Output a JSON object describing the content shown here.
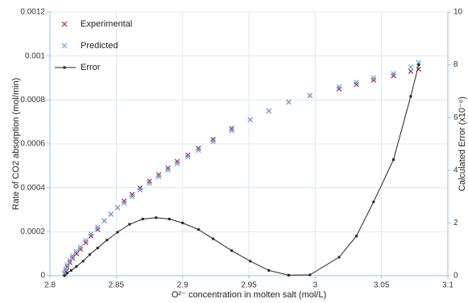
{
  "chart_data": {
    "type": "scatter",
    "x_label": "O²⁻ concentration in molten salt (mol/L)",
    "y_label": "Rate of CO2 absorption (mol/min)",
    "y2_label": "Calculated Error (x10⁻⁶)",
    "xlim": [
      2.8,
      3.1
    ],
    "xticks": [
      2.8,
      2.85,
      2.9,
      2.95,
      3,
      3.05,
      3.1
    ],
    "ylim": [
      0,
      0.0012
    ],
    "yticks": [
      0,
      0.0002,
      0.0004,
      0.0006,
      0.0008,
      0.001,
      0.0012
    ],
    "y2lim": [
      0,
      10
    ],
    "y2ticks": [
      0,
      2,
      4,
      6,
      8,
      10
    ],
    "grid": true,
    "legend": "upper left",
    "series": [
      {
        "name": "Experimental",
        "color": "#9b2d5a",
        "marker": "x",
        "x": [
          2.811,
          2.812,
          2.813,
          2.815,
          2.817,
          2.82,
          2.823,
          2.827,
          2.831,
          2.836,
          2.841,
          2.846,
          2.851,
          2.856,
          2.862,
          2.868,
          2.875,
          2.882,
          2.889,
          2.896,
          2.904,
          2.912,
          2.923,
          2.937,
          2.951,
          2.965,
          2.98,
          2.996,
          3.018,
          3.031,
          3.044,
          3.059,
          3.072,
          3.078
        ],
        "values": [
          1e-05,
          2e-05,
          4e-05,
          6e-05,
          8e-05,
          0.0001,
          0.00012,
          0.00015,
          0.00018,
          0.00021,
          0.00025,
          0.00028,
          0.00031,
          0.00034,
          0.00037,
          0.0004,
          0.00043,
          0.00046,
          0.00049,
          0.00052,
          0.00055,
          0.00058,
          0.00062,
          0.00067,
          0.00071,
          0.00075,
          0.00079,
          0.00082,
          0.00085,
          0.00087,
          0.00089,
          0.00091,
          0.00093,
          0.00094
        ]
      },
      {
        "name": "Predicted",
        "color": "#6fa0d8",
        "marker": "x",
        "x": [
          2.811,
          2.812,
          2.813,
          2.815,
          2.817,
          2.82,
          2.823,
          2.827,
          2.831,
          2.836,
          2.841,
          2.846,
          2.851,
          2.856,
          2.862,
          2.868,
          2.875,
          2.882,
          2.889,
          2.896,
          2.904,
          2.912,
          2.923,
          2.937,
          2.951,
          2.965,
          2.98,
          2.996,
          3.018,
          3.031,
          3.044,
          3.059,
          3.072,
          3.078
        ],
        "values": [
          1e-05,
          3e-05,
          5e-05,
          7e-05,
          9e-05,
          0.00011,
          0.00013,
          0.00016,
          0.00019,
          0.00022,
          0.00025,
          0.00028,
          0.00031,
          0.00033,
          0.00036,
          0.00039,
          0.00042,
          0.00045,
          0.00048,
          0.00051,
          0.00054,
          0.00057,
          0.00061,
          0.00066,
          0.00071,
          0.00075,
          0.00079,
          0.00082,
          0.00086,
          0.00088,
          0.0009,
          0.00092,
          0.00095,
          0.00097
        ]
      },
      {
        "name": "Error",
        "color": "#222222",
        "marker": "line",
        "axis": "y2",
        "x": [
          2.811,
          2.813,
          2.816,
          2.82,
          2.825,
          2.83,
          2.836,
          2.843,
          2.851,
          2.86,
          2.87,
          2.88,
          2.89,
          2.9,
          2.912,
          2.923,
          2.937,
          2.951,
          2.965,
          2.98,
          2.996,
          3.018,
          3.031,
          3.044,
          3.059,
          3.072,
          3.078
        ],
        "values": [
          0,
          0.1,
          0.2,
          0.35,
          0.55,
          0.8,
          1.05,
          1.35,
          1.65,
          1.95,
          2.15,
          2.2,
          2.15,
          2.0,
          1.75,
          1.4,
          0.95,
          0.55,
          0.2,
          0.02,
          0.03,
          0.7,
          1.5,
          2.8,
          4.4,
          6.8,
          8.0
        ]
      }
    ]
  }
}
